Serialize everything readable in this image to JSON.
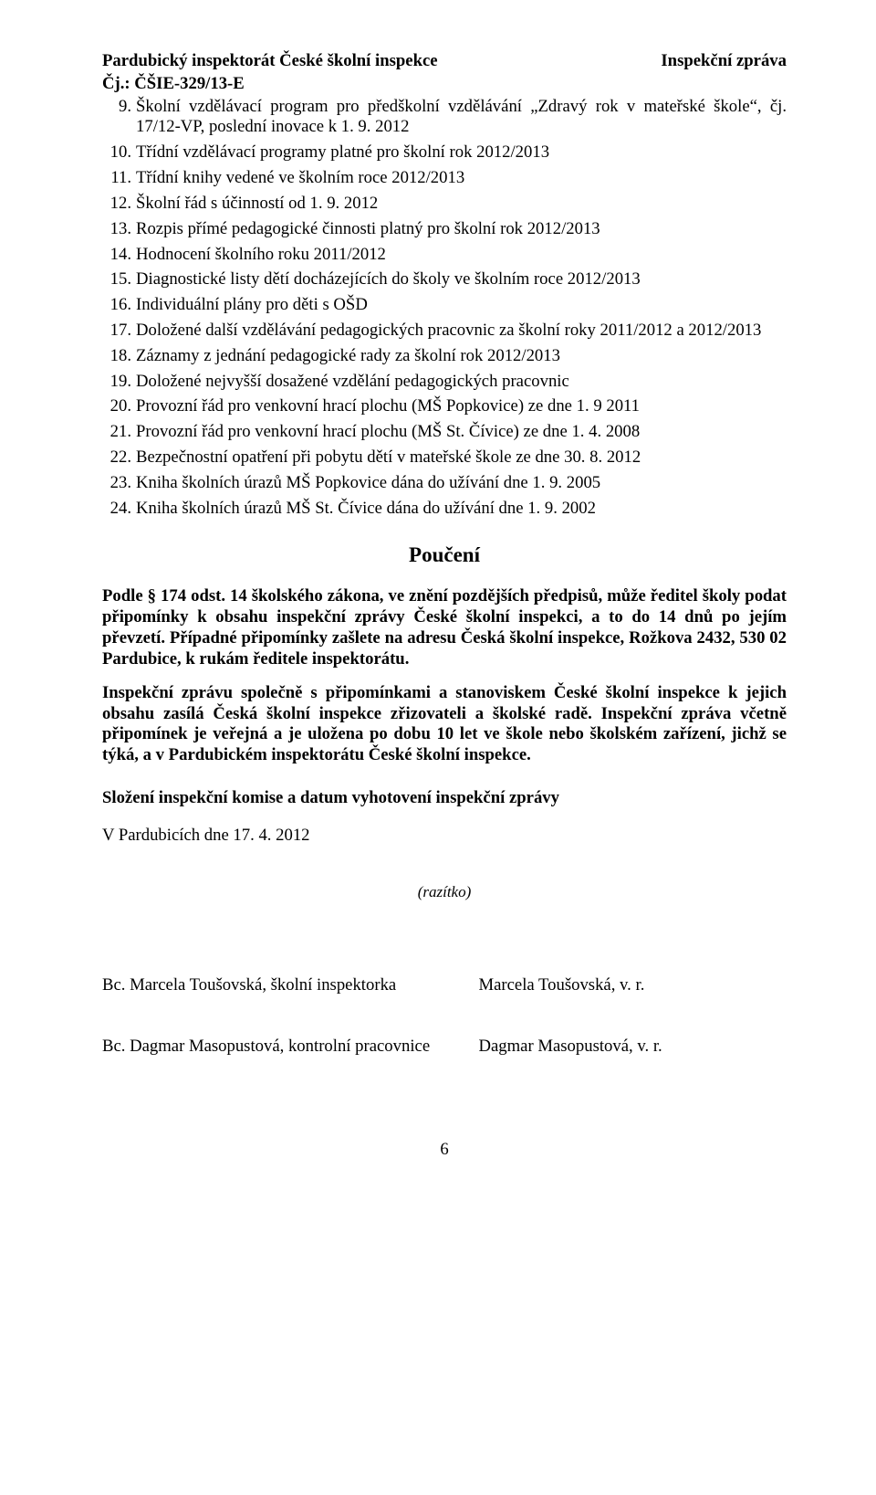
{
  "header": {
    "left": "Pardubický inspektorát České školní inspekce",
    "right_title": "Inspekční zpráva",
    "right_ref": "Čj.: ČŠIE-329/13-E"
  },
  "list": [
    {
      "n": "9.",
      "t": "Školní vzdělávací program pro předškolní vzdělávání „Zdravý rok v mateřské škole“, čj. 17/12-VP, poslední inovace k 1. 9. 2012"
    },
    {
      "n": "10.",
      "t": "Třídní vzdělávací programy platné pro školní rok 2012/2013"
    },
    {
      "n": "11.",
      "t": "Třídní knihy vedené ve školním roce 2012/2013"
    },
    {
      "n": "12.",
      "t": "Školní řád s účinností od 1. 9. 2012"
    },
    {
      "n": "13.",
      "t": "Rozpis přímé pedagogické činnosti platný pro školní rok 2012/2013"
    },
    {
      "n": "14.",
      "t": "Hodnocení školního roku 2011/2012"
    },
    {
      "n": "15.",
      "t": "Diagnostické listy dětí docházejících do školy ve školním roce 2012/2013"
    },
    {
      "n": "16.",
      "t": "Individuální plány pro děti s OŠD"
    },
    {
      "n": "17.",
      "t": "Doložené další vzdělávání pedagogických pracovnic za školní roky 2011/2012 a 2012/2013"
    },
    {
      "n": "18.",
      "t": "Záznamy z jednání pedagogické rady za školní rok 2012/2013"
    },
    {
      "n": "19.",
      "t": "Doložené nejvyšší dosažené vzdělání pedagogických pracovnic"
    },
    {
      "n": "20.",
      "t": "Provozní řád pro venkovní hrací plochu (MŠ Popkovice) ze dne 1. 9 2011"
    },
    {
      "n": "21.",
      "t": "Provozní řád pro venkovní hrací plochu (MŠ St. Čívice) ze dne 1. 4. 2008"
    },
    {
      "n": "22.",
      "t": "Bezpečnostní opatření při pobytu dětí v mateřské škole ze dne 30. 8. 2012"
    },
    {
      "n": "23.",
      "t": "Kniha školních úrazů MŠ Popkovice dána do užívání dne 1. 9. 2005"
    },
    {
      "n": "24.",
      "t": "Kniha školních úrazů MŠ St. Čívice dána do užívání dne 1. 9. 2002"
    }
  ],
  "pouceni": {
    "title": "Poučení",
    "para1": "Podle § 174 odst. 14 školského zákona, ve znění pozdějších předpisů, může ředitel školy podat připomínky k obsahu inspekční zprávy České školní inspekci, a to do 14 dnů po jejím převzetí. Případné připomínky zašlete na adresu Česká školní inspekce, Rožkova 2432, 530 02  Pardubice, k rukám ředitele inspektorátu.",
    "para2": "Inspekční zprávu společně s připomínkami a stanoviskem České školní inspekce k jejich obsahu zasílá Česká školní inspekce zřizovateli a školské radě. Inspekční zpráva včetně připomínek je veřejná a je uložena po dobu 10 let ve škole nebo školském zařízení, jichž se týká, a v Pardubickém inspektorátu České školní inspekce."
  },
  "composition_heading": "Složení inspekční komise a datum vyhotovení inspekční zprávy",
  "dateline": "V Pardubicích dne 17. 4. 2012",
  "razitko": "(razítko)",
  "signatures": [
    {
      "left": "Bc. Marcela Toušovská, školní inspektorka",
      "right": "Marcela Toušovská, v. r."
    },
    {
      "left": "Bc. Dagmar Masopustová, kontrolní pracovnice",
      "right": "Dagmar Masopustová, v. r."
    }
  ],
  "page_number": "6"
}
